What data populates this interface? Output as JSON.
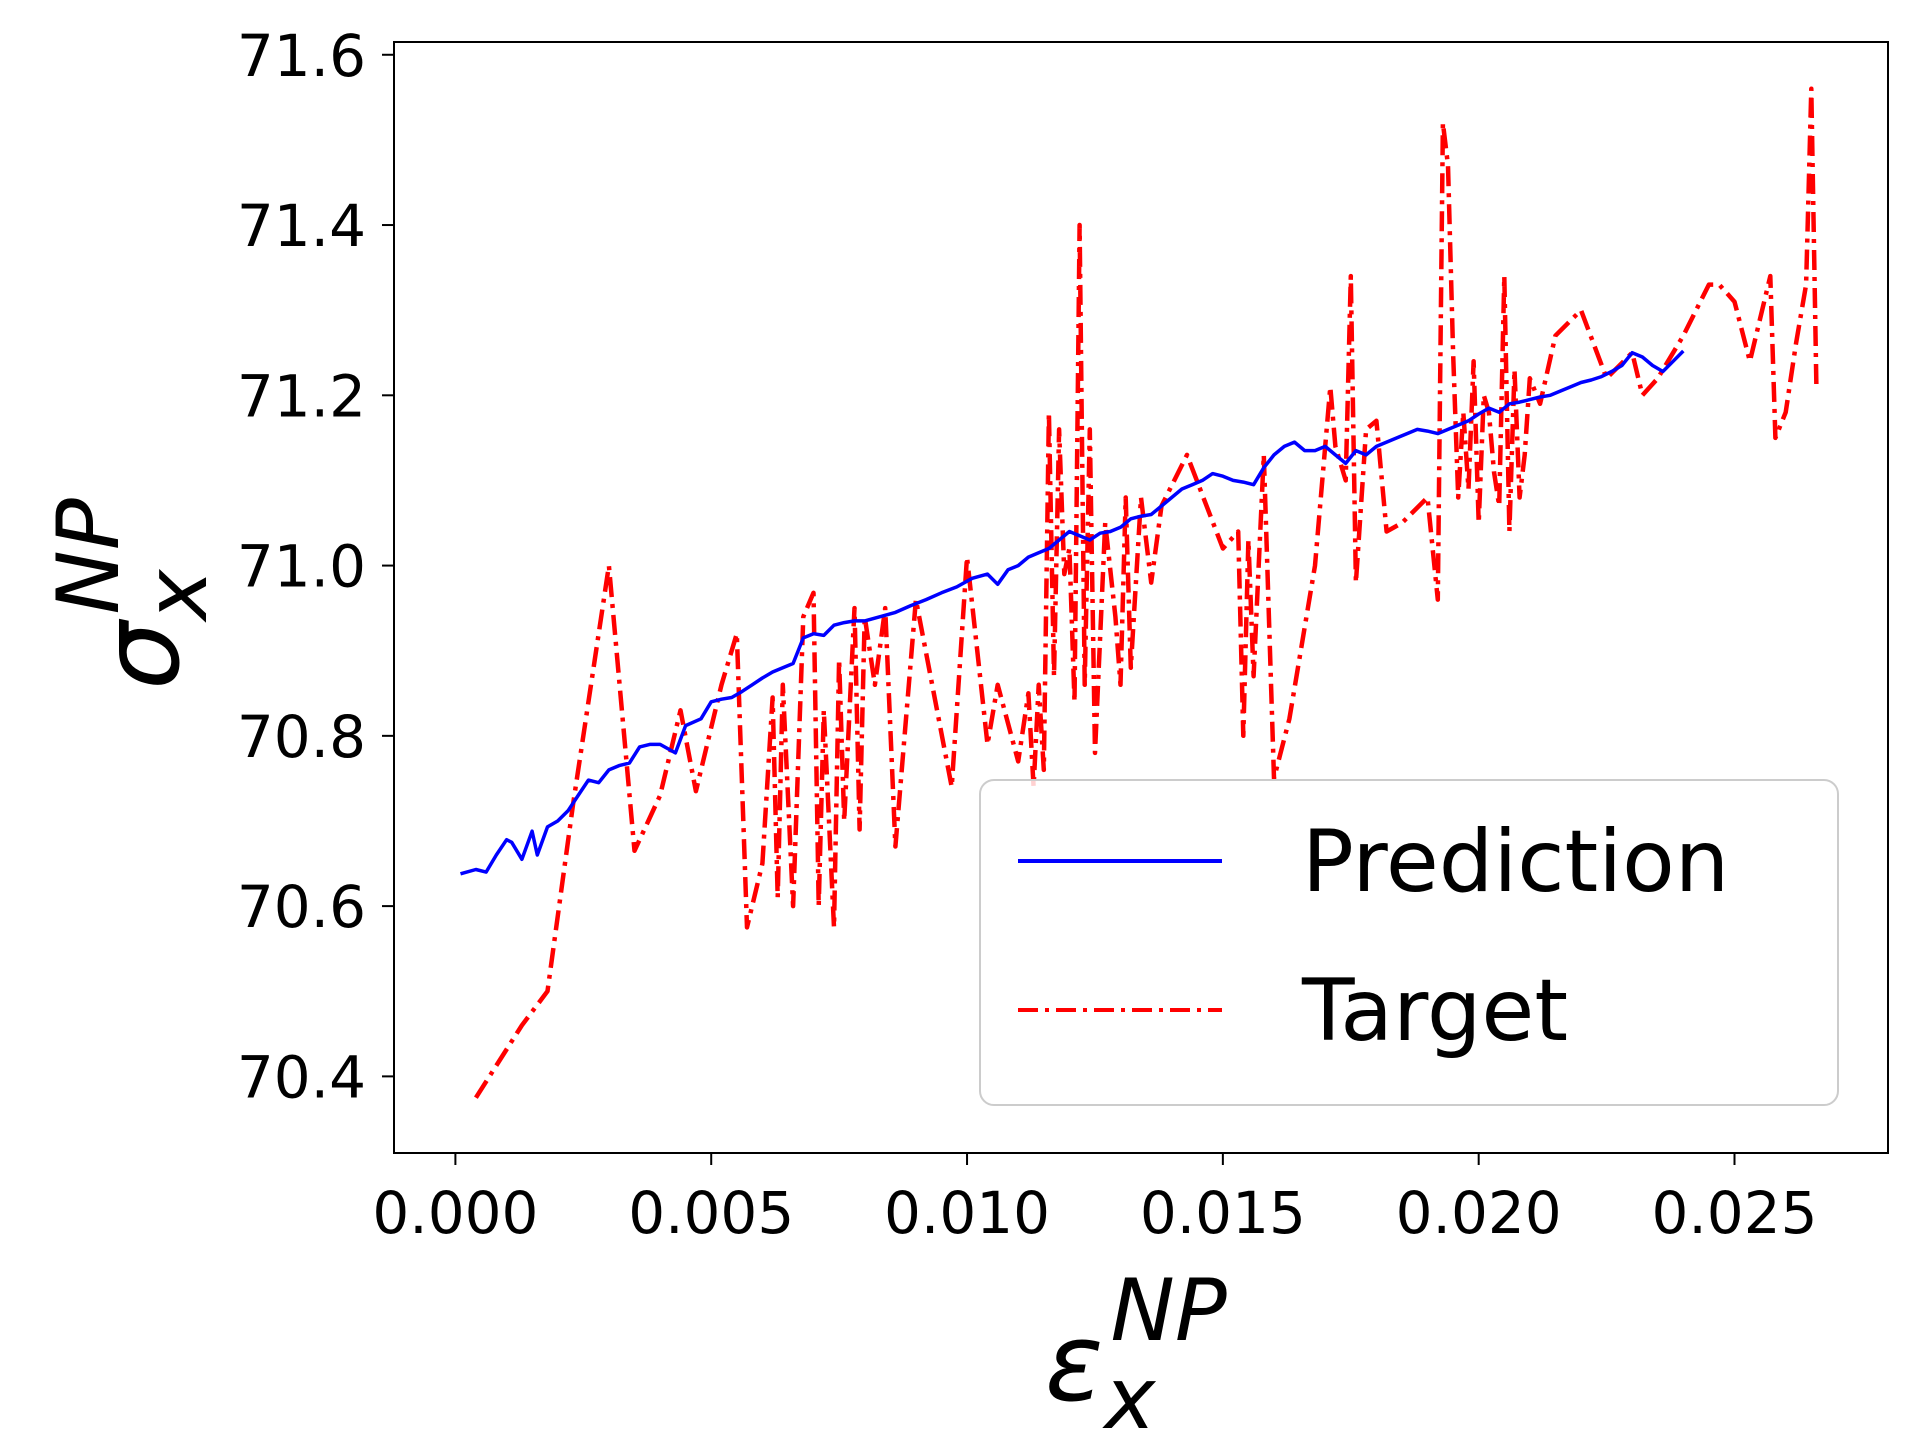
{
  "chart_data": {
    "type": "line",
    "title": "",
    "xlabel": {
      "base": "ε",
      "sub": "x",
      "sup": "NP"
    },
    "ylabel": {
      "base": "σ",
      "sub": "x",
      "sup": "NP"
    },
    "xlim": [
      -0.0012,
      0.028
    ],
    "ylim": [
      70.31,
      71.615
    ],
    "x_ticks": [
      0.0,
      0.005,
      0.01,
      0.015,
      0.02,
      0.025
    ],
    "x_tick_labels": [
      "0.000",
      "0.005",
      "0.010",
      "0.015",
      "0.020",
      "0.025"
    ],
    "y_ticks": [
      70.4,
      70.6,
      70.8,
      71.0,
      71.2,
      71.4,
      71.6
    ],
    "y_tick_labels": [
      "70.4",
      "70.6",
      "70.8",
      "71.0",
      "71.2",
      "71.4",
      "71.6"
    ],
    "grid": false,
    "legend_position": "lower-right",
    "series": [
      {
        "name": "Prediction",
        "color": "#0000ff",
        "style": "solid",
        "x": [
          0.0001,
          0.0004,
          0.0006,
          0.0008,
          0.001,
          0.0011,
          0.0013,
          0.0015,
          0.0016,
          0.0018,
          0.002,
          0.0022,
          0.0024,
          0.0026,
          0.0028,
          0.003,
          0.0032,
          0.0034,
          0.0036,
          0.0038,
          0.004,
          0.0043,
          0.0045,
          0.0048,
          0.005,
          0.0052,
          0.0054,
          0.0056,
          0.0058,
          0.006,
          0.0062,
          0.0064,
          0.0066,
          0.0068,
          0.007,
          0.0072,
          0.0074,
          0.0076,
          0.0078,
          0.008,
          0.0083,
          0.0086,
          0.0089,
          0.0092,
          0.0095,
          0.0098,
          0.0101,
          0.0104,
          0.0106,
          0.0108,
          0.011,
          0.0112,
          0.0114,
          0.0116,
          0.0118,
          0.012,
          0.0122,
          0.0124,
          0.0126,
          0.0128,
          0.013,
          0.0132,
          0.0134,
          0.0136,
          0.0138,
          0.014,
          0.0142,
          0.0144,
          0.0146,
          0.0148,
          0.015,
          0.0152,
          0.0154,
          0.0156,
          0.0158,
          0.016,
          0.0162,
          0.0164,
          0.0166,
          0.0168,
          0.017,
          0.0172,
          0.0174,
          0.0176,
          0.0178,
          0.018,
          0.0182,
          0.0184,
          0.0186,
          0.0188,
          0.019,
          0.0192,
          0.0194,
          0.0196,
          0.0198,
          0.02,
          0.0202,
          0.0204,
          0.0206,
          0.0208,
          0.021,
          0.0212,
          0.0214,
          0.0216,
          0.0218,
          0.022,
          0.0222,
          0.0224,
          0.0226,
          0.0228,
          0.023,
          0.0232,
          0.0234,
          0.0236,
          0.0238,
          0.024
        ],
        "y": [
          70.638,
          70.643,
          70.64,
          70.66,
          70.678,
          70.675,
          70.655,
          70.688,
          70.66,
          70.693,
          70.7,
          70.712,
          70.73,
          70.748,
          70.745,
          70.76,
          70.765,
          70.768,
          70.787,
          70.79,
          70.79,
          70.78,
          70.812,
          70.82,
          70.84,
          70.843,
          70.845,
          70.852,
          70.86,
          70.868,
          70.875,
          70.88,
          70.885,
          70.915,
          70.92,
          70.918,
          70.93,
          70.933,
          70.935,
          70.935,
          70.94,
          70.945,
          70.953,
          70.96,
          70.968,
          70.975,
          70.985,
          70.99,
          70.978,
          70.995,
          71.0,
          71.01,
          71.015,
          71.02,
          71.03,
          71.04,
          71.035,
          71.03,
          71.038,
          71.04,
          71.045,
          71.055,
          71.058,
          71.06,
          71.07,
          71.08,
          71.09,
          71.095,
          71.1,
          71.108,
          71.105,
          71.1,
          71.098,
          71.095,
          71.115,
          71.13,
          71.14,
          71.145,
          71.135,
          71.135,
          71.14,
          71.13,
          71.12,
          71.135,
          71.13,
          71.14,
          71.145,
          71.15,
          71.155,
          71.16,
          71.158,
          71.155,
          71.16,
          71.165,
          71.17,
          71.178,
          71.185,
          71.18,
          71.19,
          71.192,
          71.195,
          71.198,
          71.2,
          71.205,
          71.21,
          71.215,
          71.218,
          71.222,
          71.228,
          71.235,
          71.25,
          71.245,
          71.235,
          71.228,
          71.24,
          71.252
        ]
      },
      {
        "name": "Target",
        "color": "#ff0000",
        "style": "dashdot",
        "x": [
          0.0004,
          0.0013,
          0.0018,
          0.0023,
          0.003,
          0.0035,
          0.004,
          0.0044,
          0.0047,
          0.0052,
          0.0055,
          0.0057,
          0.006,
          0.0062,
          0.0063,
          0.0064,
          0.0066,
          0.0068,
          0.007,
          0.0071,
          0.0072,
          0.0074,
          0.0075,
          0.0076,
          0.0078,
          0.0079,
          0.008,
          0.0082,
          0.0084,
          0.0086,
          0.009,
          0.0097,
          0.01,
          0.0104,
          0.0106,
          0.011,
          0.0112,
          0.0113,
          0.0114,
          0.0115,
          0.0116,
          0.0117,
          0.0118,
          0.0119,
          0.012,
          0.0121,
          0.0122,
          0.0123,
          0.0124,
          0.0125,
          0.0127,
          0.0129,
          0.013,
          0.0131,
          0.0132,
          0.0134,
          0.0136,
          0.0138,
          0.0143,
          0.015,
          0.0153,
          0.0154,
          0.0155,
          0.0156,
          0.0158,
          0.016,
          0.0163,
          0.0168,
          0.0171,
          0.0172,
          0.0174,
          0.0175,
          0.0176,
          0.0178,
          0.018,
          0.0182,
          0.0185,
          0.019,
          0.0192,
          0.0193,
          0.0194,
          0.0195,
          0.0196,
          0.0197,
          0.0198,
          0.0199,
          0.02,
          0.0201,
          0.0202,
          0.0203,
          0.0204,
          0.0205,
          0.0206,
          0.0207,
          0.0208,
          0.0209,
          0.021,
          0.0212,
          0.0215,
          0.022,
          0.0225,
          0.023,
          0.0232,
          0.0235,
          0.024,
          0.0245,
          0.0247,
          0.025,
          0.0253,
          0.0255,
          0.0257,
          0.0258,
          0.026,
          0.0262,
          0.0264,
          0.0265,
          0.0266
        ],
        "y": [
          70.375,
          70.46,
          70.5,
          70.72,
          71.0,
          70.665,
          70.73,
          70.83,
          70.735,
          70.86,
          70.92,
          70.575,
          70.65,
          70.845,
          70.61,
          70.86,
          70.6,
          70.94,
          70.968,
          70.6,
          70.83,
          70.575,
          70.89,
          70.7,
          70.95,
          70.69,
          70.94,
          70.86,
          70.95,
          70.67,
          70.96,
          70.74,
          71.01,
          70.79,
          70.86,
          70.77,
          70.85,
          70.74,
          70.86,
          70.76,
          71.18,
          70.87,
          71.16,
          70.99,
          71.02,
          70.84,
          71.4,
          70.86,
          71.16,
          70.78,
          71.05,
          70.94,
          70.86,
          71.08,
          70.88,
          71.08,
          70.98,
          71.07,
          71.13,
          71.02,
          71.04,
          70.8,
          71.03,
          70.87,
          71.13,
          70.75,
          70.82,
          71.0,
          71.21,
          71.14,
          71.1,
          71.34,
          70.98,
          71.16,
          71.17,
          71.04,
          71.05,
          71.08,
          70.96,
          71.52,
          71.47,
          71.25,
          71.08,
          71.18,
          71.09,
          71.24,
          71.05,
          71.2,
          71.18,
          71.11,
          71.07,
          71.34,
          71.04,
          71.23,
          71.08,
          71.13,
          71.22,
          71.19,
          71.27,
          71.3,
          71.22,
          71.25,
          71.2,
          71.22,
          71.27,
          71.33,
          71.33,
          71.31,
          71.24,
          71.29,
          71.34,
          71.15,
          71.18,
          71.26,
          71.33,
          71.56,
          71.21
        ]
      }
    ]
  }
}
